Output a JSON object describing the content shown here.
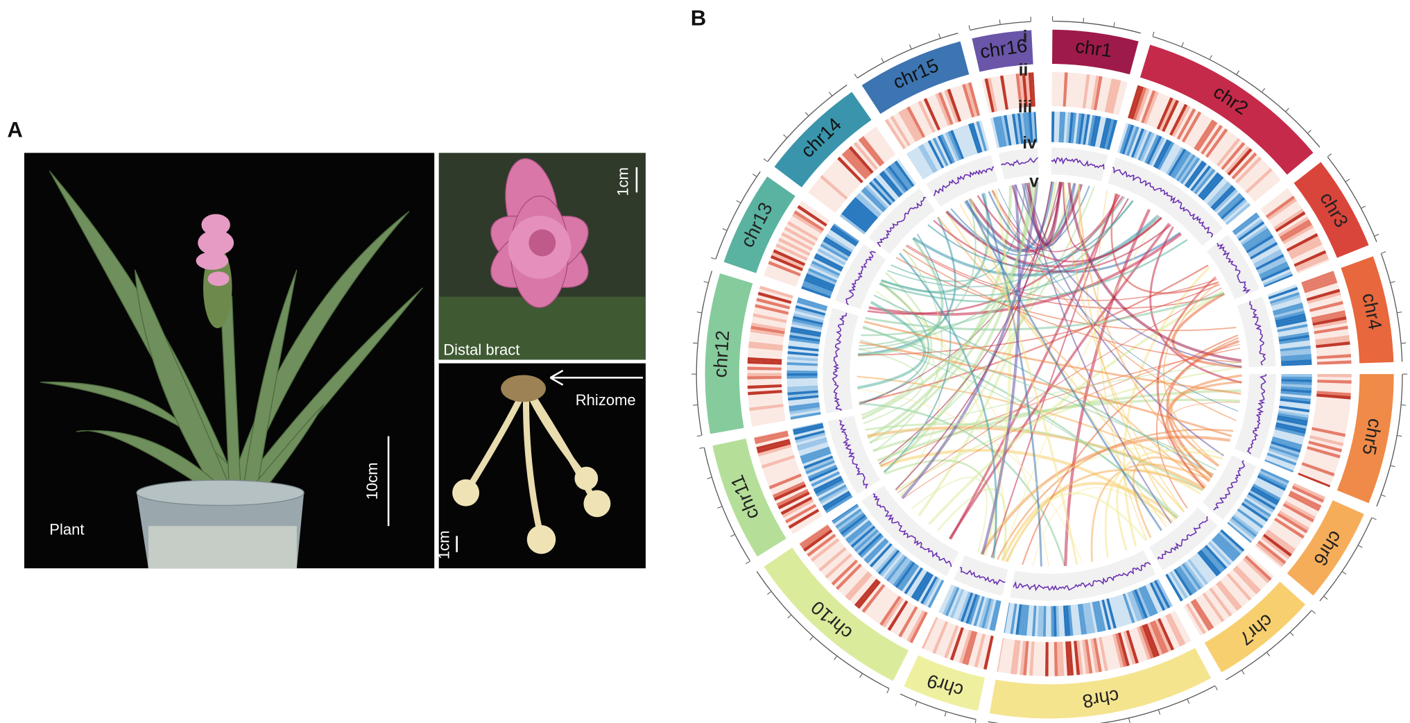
{
  "panel_a": {
    "label": "A",
    "plant": {
      "label": "Plant",
      "scale": "10cm"
    },
    "bract": {
      "label": "Distal bract",
      "scale": "1cm"
    },
    "rhizome": {
      "label": "Rhizome",
      "scale": "1cm"
    }
  },
  "panel_b": {
    "label": "B",
    "tracks": [
      "i",
      "ii",
      "iii",
      "iv",
      "v"
    ],
    "chromosomes": [
      "chr1",
      "chr2",
      "chr3",
      "chr4",
      "chr5",
      "chr6",
      "chr7",
      "chr8",
      "chr9",
      "chr10",
      "chr11",
      "chr12",
      "chr13",
      "chr14",
      "chr15",
      "chr16"
    ]
  }
}
